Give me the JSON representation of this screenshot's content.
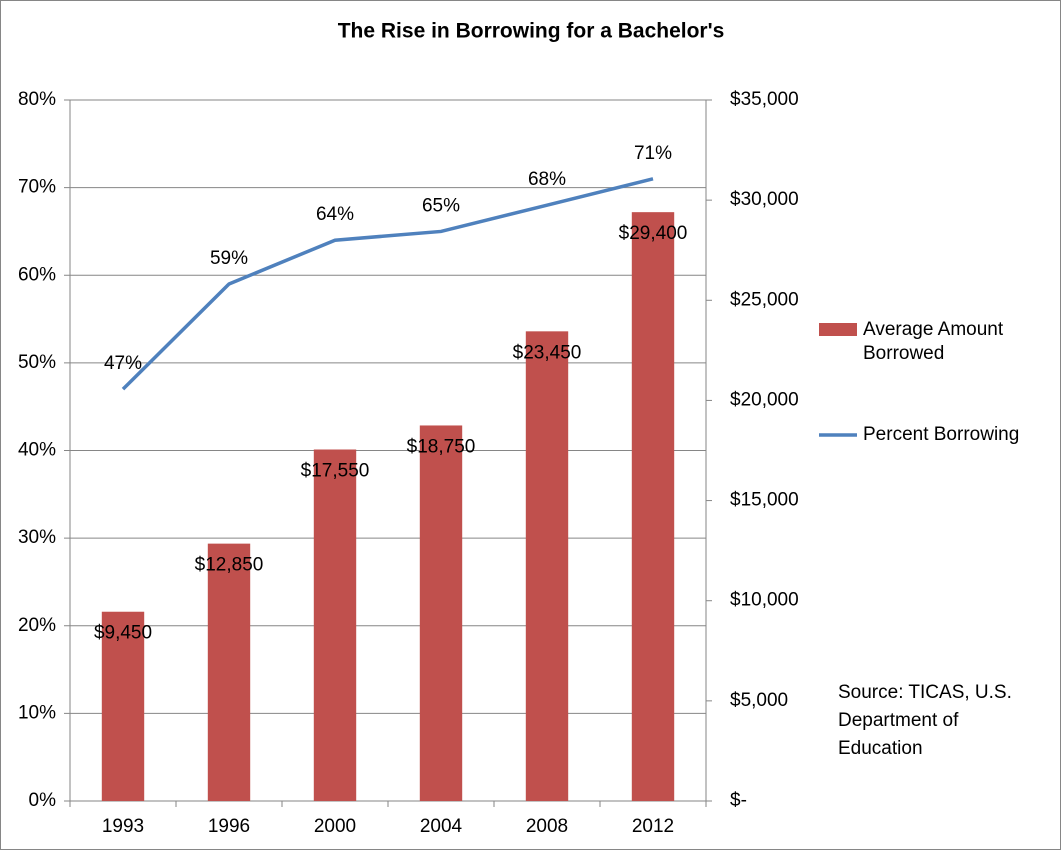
{
  "chart_data": {
    "type": "bar",
    "title": "The Rise in Borrowing for a Bachelor's",
    "categories": [
      "1993",
      "1996",
      "2000",
      "2004",
      "2008",
      "2012"
    ],
    "series": [
      {
        "name": "Average Amount Borrowed",
        "type": "bar",
        "axis": "y2",
        "color": "#c0504d",
        "values": [
          9450,
          12850,
          17550,
          18750,
          23450,
          29400
        ],
        "value_labels": [
          "$9,450",
          "$12,850",
          "$17,550",
          "$18,750",
          "$23,450",
          "$29,400"
        ]
      },
      {
        "name": "Percent Borrowing",
        "type": "line",
        "color": "#4f81bd",
        "values": [
          47,
          59,
          64,
          65,
          68,
          71
        ],
        "value_labels": [
          "47%",
          "59%",
          "64%",
          "65%",
          "68%",
          "71%"
        ]
      }
    ],
    "ylim": [
      0,
      80
    ],
    "yticks": [
      {
        "value": 0,
        "label": "0%"
      },
      {
        "value": 10,
        "label": "10%"
      },
      {
        "value": 20,
        "label": "20%"
      },
      {
        "value": 30,
        "label": "30%"
      },
      {
        "value": 40,
        "label": "40%"
      },
      {
        "value": 50,
        "label": "50%"
      },
      {
        "value": 60,
        "label": "60%"
      },
      {
        "value": 70,
        "label": "70%"
      },
      {
        "value": 80,
        "label": "80%"
      }
    ],
    "y2lim": [
      0,
      35000
    ],
    "y2ticks": [
      {
        "value": 0,
        "label": "$-"
      },
      {
        "value": 5000,
        "label": "$5,000"
      },
      {
        "value": 10000,
        "label": "$10,000"
      },
      {
        "value": 15000,
        "label": "$15,000"
      },
      {
        "value": 20000,
        "label": "$20,000"
      },
      {
        "value": 25000,
        "label": "$25,000"
      },
      {
        "value": 30000,
        "label": "$30,000"
      },
      {
        "value": 35000,
        "label": "$35,000"
      }
    ],
    "grid": true,
    "legend": "right",
    "source": "Source: TICAS, U.S. Department of Education"
  }
}
